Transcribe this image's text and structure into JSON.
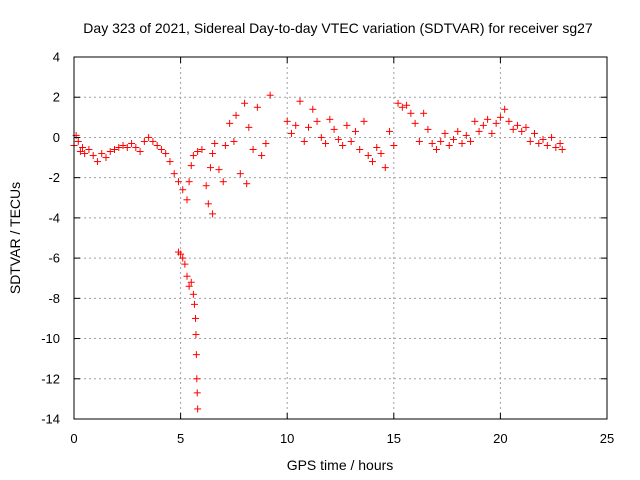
{
  "chart_data": {
    "type": "scatter",
    "title": "Day 323 of 2021, Sidereal Day-to-day VTEC variation (SDTVAR) for receiver sg27",
    "xlabel": "GPS time / hours",
    "ylabel": "SDTVAR / TECUs",
    "xlim": [
      0,
      25
    ],
    "ylim": [
      -14,
      4
    ],
    "xticks": [
      0,
      5,
      10,
      15,
      20,
      25
    ],
    "xtick_labels": [
      "0",
      "5",
      "10",
      "15",
      "20",
      "25"
    ],
    "yticks": [
      -14,
      -12,
      -10,
      -8,
      -6,
      -4,
      -2,
      0,
      2,
      4
    ],
    "ytick_labels": [
      "-14",
      "-12",
      "-10",
      "-8",
      "-6",
      "-4",
      "-2",
      "0",
      "2",
      "4"
    ],
    "grid": true,
    "marker": "plus",
    "color": "#ff0000",
    "series": [
      {
        "name": "SDTVAR",
        "points": [
          [
            0.0,
            -0.4
          ],
          [
            0.1,
            0.1
          ],
          [
            0.2,
            -0.2
          ],
          [
            0.3,
            -0.7
          ],
          [
            0.4,
            -0.5
          ],
          [
            0.5,
            -0.8
          ],
          [
            0.7,
            -0.6
          ],
          [
            0.9,
            -0.9
          ],
          [
            1.1,
            -1.2
          ],
          [
            1.3,
            -0.8
          ],
          [
            1.5,
            -1.0
          ],
          [
            1.7,
            -0.7
          ],
          [
            1.9,
            -0.6
          ],
          [
            2.1,
            -0.5
          ],
          [
            2.3,
            -0.4
          ],
          [
            2.5,
            -0.5
          ],
          [
            2.7,
            -0.3
          ],
          [
            2.9,
            -0.5
          ],
          [
            3.1,
            -0.7
          ],
          [
            3.3,
            -0.2
          ],
          [
            3.5,
            0.0
          ],
          [
            3.7,
            -0.2
          ],
          [
            3.9,
            -0.4
          ],
          [
            4.1,
            -0.6
          ],
          [
            4.3,
            -0.8
          ],
          [
            4.5,
            -1.2
          ],
          [
            4.7,
            -1.8
          ],
          [
            4.9,
            -2.2
          ],
          [
            5.1,
            -2.6
          ],
          [
            5.3,
            -3.1
          ],
          [
            5.4,
            -2.2
          ],
          [
            5.5,
            -1.4
          ],
          [
            5.6,
            -0.9
          ],
          [
            5.8,
            -0.7
          ],
          [
            6.0,
            -0.6
          ],
          [
            6.2,
            -2.4
          ],
          [
            6.3,
            -3.3
          ],
          [
            6.4,
            -1.5
          ],
          [
            6.5,
            -0.8
          ],
          [
            6.6,
            -0.3
          ],
          [
            6.8,
            -1.6
          ],
          [
            7.0,
            -2.2
          ],
          [
            7.1,
            -0.4
          ],
          [
            7.3,
            0.7
          ],
          [
            7.5,
            -0.2
          ],
          [
            7.6,
            1.1
          ],
          [
            7.8,
            -1.8
          ],
          [
            8.0,
            1.7
          ],
          [
            8.1,
            -2.3
          ],
          [
            8.2,
            0.5
          ],
          [
            8.4,
            -0.6
          ],
          [
            8.6,
            1.5
          ],
          [
            8.8,
            -0.9
          ],
          [
            9.0,
            -0.3
          ],
          [
            9.2,
            2.1
          ],
          [
            6.5,
            -3.8
          ],
          [
            4.9,
            -5.7
          ],
          [
            5.0,
            -5.8
          ],
          [
            5.1,
            -6.0
          ],
          [
            5.2,
            -6.3
          ],
          [
            5.3,
            -6.9
          ],
          [
            5.4,
            -7.4
          ],
          [
            5.5,
            -7.2
          ],
          [
            5.6,
            -7.8
          ],
          [
            5.65,
            -8.3
          ],
          [
            5.7,
            -9.0
          ],
          [
            5.72,
            -9.8
          ],
          [
            5.74,
            -10.8
          ],
          [
            5.76,
            -12.0
          ],
          [
            5.78,
            -12.7
          ],
          [
            5.8,
            -13.5
          ],
          [
            10.0,
            0.8
          ],
          [
            10.2,
            0.2
          ],
          [
            10.4,
            0.6
          ],
          [
            10.6,
            1.8
          ],
          [
            10.8,
            -0.2
          ],
          [
            11.0,
            0.5
          ],
          [
            11.2,
            1.4
          ],
          [
            11.4,
            0.8
          ],
          [
            11.6,
            0.0
          ],
          [
            11.8,
            -0.3
          ],
          [
            12.0,
            0.9
          ],
          [
            12.2,
            0.4
          ],
          [
            12.4,
            -0.1
          ],
          [
            12.6,
            -0.4
          ],
          [
            12.8,
            0.6
          ],
          [
            13.0,
            -0.2
          ],
          [
            13.2,
            0.3
          ],
          [
            13.4,
            -0.6
          ],
          [
            13.6,
            0.8
          ],
          [
            13.8,
            -0.9
          ],
          [
            14.0,
            -1.2
          ],
          [
            14.2,
            -0.5
          ],
          [
            14.4,
            -0.8
          ],
          [
            14.6,
            -1.5
          ],
          [
            14.8,
            0.3
          ],
          [
            15.0,
            -0.4
          ],
          [
            15.2,
            1.7
          ],
          [
            15.4,
            1.5
          ],
          [
            15.6,
            1.6
          ],
          [
            15.8,
            1.2
          ],
          [
            16.0,
            0.7
          ],
          [
            16.2,
            -0.2
          ],
          [
            16.4,
            1.2
          ],
          [
            16.6,
            0.4
          ],
          [
            16.8,
            -0.3
          ],
          [
            17.0,
            -0.6
          ],
          [
            17.2,
            -0.2
          ],
          [
            17.4,
            0.2
          ],
          [
            17.6,
            -0.4
          ],
          [
            17.8,
            -0.1
          ],
          [
            18.0,
            0.3
          ],
          [
            18.2,
            -0.3
          ],
          [
            18.4,
            0.1
          ],
          [
            18.6,
            -0.2
          ],
          [
            18.8,
            0.8
          ],
          [
            19.0,
            0.3
          ],
          [
            19.2,
            0.6
          ],
          [
            19.4,
            0.9
          ],
          [
            19.6,
            0.2
          ],
          [
            19.8,
            0.7
          ],
          [
            20.0,
            1.0
          ],
          [
            20.2,
            1.4
          ],
          [
            20.4,
            0.8
          ],
          [
            20.6,
            0.4
          ],
          [
            20.8,
            0.6
          ],
          [
            21.0,
            0.3
          ],
          [
            21.2,
            0.5
          ],
          [
            21.4,
            -0.2
          ],
          [
            21.6,
            0.2
          ],
          [
            21.8,
            -0.3
          ],
          [
            22.0,
            -0.1
          ],
          [
            22.2,
            -0.4
          ],
          [
            22.4,
            0.0
          ],
          [
            22.6,
            -0.5
          ],
          [
            22.8,
            -0.3
          ],
          [
            22.9,
            -0.6
          ]
        ]
      }
    ]
  }
}
